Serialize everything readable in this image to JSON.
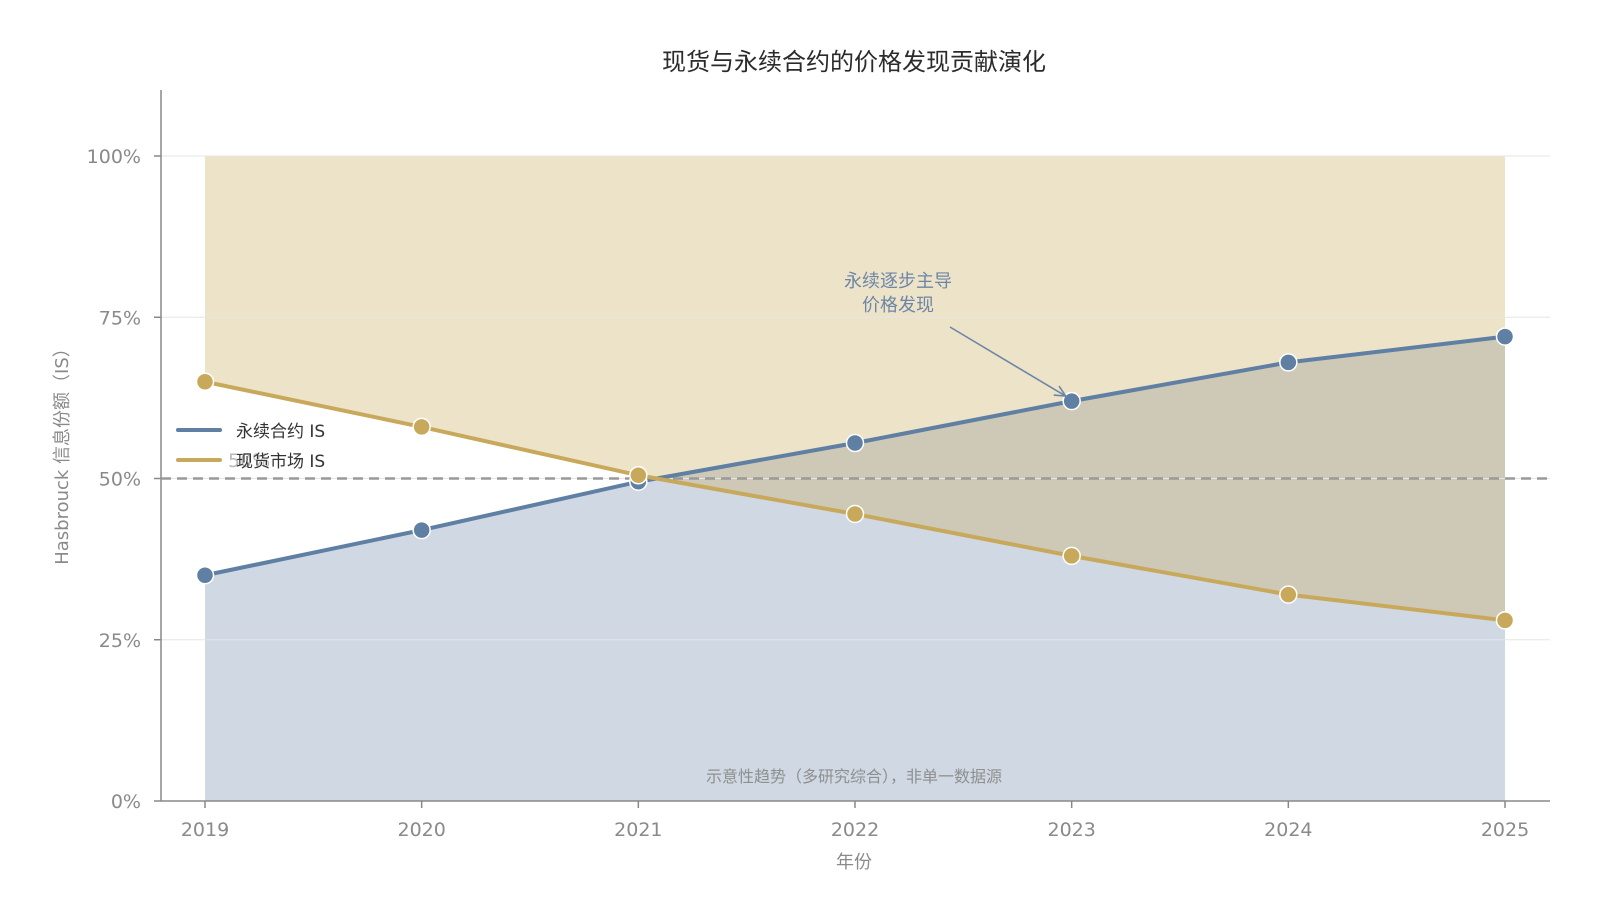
{
  "chart_data": {
    "type": "line",
    "title": "现货与永续合约的价格发现贡献演化",
    "xlabel": "年份",
    "ylabel": "Hasbrouck 信息份额（IS）",
    "x": [
      2019,
      2020,
      2021,
      2022,
      2023,
      2024,
      2025
    ],
    "ylim": [
      0,
      100
    ],
    "yticks": [
      0,
      25,
      50,
      75,
      100
    ],
    "ytick_labels": [
      "0%",
      "25%",
      "50%",
      "75%",
      "100%"
    ],
    "grid": true,
    "legend_position": "left",
    "series": [
      {
        "name": "永续合约 IS",
        "values": [
          35,
          42,
          49.5,
          55.5,
          62,
          68,
          72
        ],
        "color": "#5f7fa3",
        "fill": "below"
      },
      {
        "name": "现货市场 IS",
        "values": [
          65,
          58,
          50.5,
          44.5,
          38,
          32,
          28
        ],
        "color": "#c8a95c",
        "fill": "above-to-100"
      }
    ],
    "reference_line": {
      "y": 50,
      "style": "dashed",
      "color": "#999999",
      "label": "50%"
    },
    "annotations": [
      {
        "lines": [
          "永续逐步主导",
          "价格发现"
        ],
        "target_x": 2023,
        "target_y": 62
      }
    ],
    "note": "示意性趋势（多研究综合），非单一数据源"
  }
}
